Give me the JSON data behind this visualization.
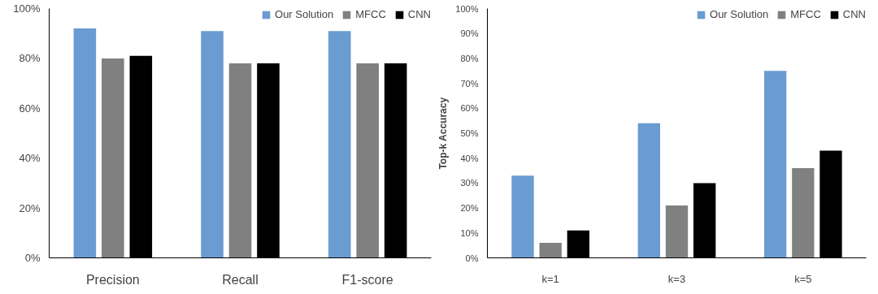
{
  "chart_data": [
    {
      "type": "bar",
      "categories": [
        "Precision",
        "Recall",
        "F1-score"
      ],
      "series": [
        {
          "name": "Our Solution",
          "color": "#6a9bd1",
          "values": [
            92,
            91,
            91
          ]
        },
        {
          "name": "MFCC",
          "color": "#808080",
          "values": [
            80,
            78,
            78
          ]
        },
        {
          "name": "CNN",
          "color": "#000000",
          "values": [
            81,
            78,
            78
          ]
        }
      ],
      "ylim": [
        0,
        100
      ],
      "yticks": [
        {
          "value": 0,
          "label": "0%"
        },
        {
          "value": 20,
          "label": "20%"
        },
        {
          "value": 40,
          "label": "40%"
        },
        {
          "value": 60,
          "label": "60%"
        },
        {
          "value": 80,
          "label": "80%"
        },
        {
          "value": 100,
          "label": "100%"
        }
      ],
      "legend": "top right",
      "grid": false
    },
    {
      "type": "bar",
      "categories": [
        "k=1",
        "k=3",
        "k=5"
      ],
      "ylabel": "Top-k Accuracy",
      "series": [
        {
          "name": "Our Solution",
          "color": "#6a9bd1",
          "values": [
            33,
            54,
            75
          ]
        },
        {
          "name": "MFCC",
          "color": "#808080",
          "values": [
            6,
            21,
            36
          ]
        },
        {
          "name": "CNN",
          "color": "#000000",
          "values": [
            11,
            30,
            43
          ]
        }
      ],
      "ylim": [
        0,
        100
      ],
      "yticks": [
        {
          "value": 0,
          "label": "0%"
        },
        {
          "value": 10,
          "label": "10%"
        },
        {
          "value": 20,
          "label": "20%"
        },
        {
          "value": 30,
          "label": "30%"
        },
        {
          "value": 40,
          "label": "40%"
        },
        {
          "value": 50,
          "label": "50%"
        },
        {
          "value": 60,
          "label": "60%"
        },
        {
          "value": 70,
          "label": "70%"
        },
        {
          "value": 80,
          "label": "80%"
        },
        {
          "value": 90,
          "label": "90%"
        },
        {
          "value": 100,
          "label": "100%"
        }
      ],
      "legend": "top right",
      "grid": false
    }
  ]
}
